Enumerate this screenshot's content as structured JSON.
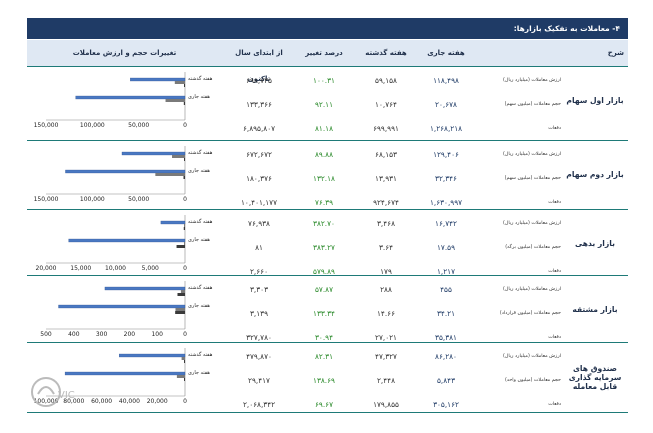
{
  "title": "۴- معاملات به تفکیک بازارها:",
  "headers": {
    "description": "شرح",
    "current_week": "هفته جاری",
    "previous_week": "هفته گذشته",
    "change_percent": "درصد تغییر",
    "ytd": "از ابتدای سال تاکنون",
    "chart_header": "تغییرات حجم و ارزش معاملات"
  },
  "chart_labels": {
    "previous": "هفته گذشته",
    "current": "هفته جاری"
  },
  "markets": [
    {
      "name": "بازار اول سهام",
      "rows": [
        {
          "label": "ارزش معاملات (میلیارد ریال)",
          "current": "۱۱۸,۴۹۸",
          "previous": "۵۹,۱۵۸",
          "change": "۱۰۰.۳۱",
          "ytd": "۶۹۸,۷۳۵"
        },
        {
          "label": "حجم معاملات (میلیون سهم)",
          "current": "۲۰,۶۷۸",
          "previous": "۱۰,۷۶۴",
          "change": "۹۲.۱۱",
          "ytd": "۱۳۳,۳۶۶"
        },
        {
          "label": "دفعات",
          "current": "۱,۲۶۸,۲۱۸",
          "previous": "۶۹۹,۹۹۱",
          "change": "۸۱.۱۸",
          "ytd": "۶,۸۹۵,۸۰۷"
        }
      ]
    },
    {
      "name": "بازار دوم سهام",
      "rows": [
        {
          "label": "ارزش معاملات (میلیارد ریال)",
          "current": "۱۲۹,۴۰۶",
          "previous": "۶۸,۱۵۳",
          "change": "۸۹.۸۸",
          "ytd": "۶۷۲,۶۷۲"
        },
        {
          "label": "حجم معاملات (میلیون سهم)",
          "current": "۳۲,۳۴۶",
          "previous": "۱۳,۹۳۱",
          "change": "۱۳۲.۱۸",
          "ytd": "۱۸۰,۳۷۶"
        },
        {
          "label": "دفعات",
          "current": "۱,۶۳۰,۹۹۷",
          "previous": "۹۲۴,۶۷۴",
          "change": "۷۶.۳۹",
          "ytd": "۱۰,۴۰۱,۱۷۷"
        }
      ]
    },
    {
      "name": "بازار بدهی",
      "rows": [
        {
          "label": "ارزش معاملات (میلیارد ریال)",
          "current": "۱۶,۷۴۲",
          "previous": "۳,۴۶۸",
          "change": "۳۸۲.۷۰",
          "ytd": "۷۶,۹۳۸"
        },
        {
          "label": "حجم معاملات (میلیون برگه)",
          "current": "۱۷.۵۹",
          "previous": "۳.۶۴",
          "change": "۳۸۳.۲۷",
          "ytd": "۸۱"
        },
        {
          "label": "دفعات",
          "current": "۱,۲۱۷",
          "previous": "۱۷۹",
          "change": "۵۷۹.۸۹",
          "ytd": "۲,۶۶۰"
        }
      ]
    },
    {
      "name": "بازار مشتقه",
      "rows": [
        {
          "label": "ارزش معاملات (میلیارد ریال)",
          "current": "۴۵۵",
          "previous": "۲۸۸",
          "change": "۵۷.۸۷",
          "ytd": "۳,۳۰۳"
        },
        {
          "label": "حجم معاملات (میلیون قرارداد)",
          "current": "۳۴.۲۱",
          "previous": "۱۴.۶۶",
          "change": "۱۳۳.۳۴",
          "ytd": "۳,۱۳۹"
        },
        {
          "label": "دفعات",
          "current": "۳۵,۳۸۱",
          "previous": "۲۷,۰۲۱",
          "change": "۳۰.۹۴",
          "ytd": "۳۲۷,۷۸۰"
        }
      ]
    },
    {
      "name": "صندوق های سرمایه گذاری قابل معامله",
      "rows": [
        {
          "label": "ارزش معاملات (میلیارد ریال)",
          "current": "۸۶,۲۸۰",
          "previous": "۴۷,۳۲۷",
          "change": "۸۲.۳۱",
          "ytd": "۴۷۹,۸۷۰"
        },
        {
          "label": "حجم معاملات (میلیون واحد)",
          "current": "۵,۸۴۳",
          "previous": "۲,۴۴۸",
          "change": "۱۳۸.۶۹",
          "ytd": "۲۹,۴۱۷"
        },
        {
          "label": "دفعات",
          "current": "۳۰۵,۱۶۲",
          "previous": "۱۷۹,۸۵۵",
          "change": "۶۹.۶۷",
          "ytd": "۲,۰۶۸,۳۴۲"
        }
      ]
    }
  ],
  "chart_data": [
    {
      "type": "bar",
      "categories": [
        "هفته جاری",
        "هفته گذشته"
      ],
      "series": [
        {
          "values": [
            118,
            59
          ]
        },
        {
          "values": [
            21,
            11
          ]
        },
        {
          "values": [
            1.27,
            0.7
          ]
        }
      ],
      "ticks": [
        "150,000",
        "100,000",
        "50,000",
        "0"
      ],
      "xlim": [
        0,
        150
      ]
    },
    {
      "type": "bar",
      "categories": [
        "هفته جاری",
        "هفته گذشته"
      ],
      "series": [
        {
          "values": [
            129,
            68
          ]
        },
        {
          "values": [
            32,
            14
          ]
        },
        {
          "values": [
            1.63,
            0.92
          ]
        }
      ],
      "ticks": [
        "150,000",
        "100,000",
        "50,000",
        "0"
      ],
      "xlim": [
        0,
        150
      ]
    },
    {
      "type": "bar",
      "categories": [
        "هفته جاری",
        "هفته گذشته"
      ],
      "series": [
        {
          "values": [
            16742,
            3468
          ]
        },
        {
          "values": [
            17.59,
            3.64
          ]
        },
        {
          "values": [
            1217,
            179
          ]
        }
      ],
      "ticks": [
        "20,000",
        "15,000",
        "10,000",
        "5,000",
        "0"
      ],
      "xlim": [
        0,
        20000
      ]
    },
    {
      "type": "bar",
      "categories": [
        "هفته جاری",
        "هفته گذشته"
      ],
      "series": [
        {
          "values": [
            455,
            288
          ]
        },
        {
          "values": [
            34.21,
            14.66
          ]
        },
        {
          "values": [
            35.381,
            27.021
          ]
        }
      ],
      "ticks": [
        "500",
        "400",
        "300",
        "200",
        "100",
        "0"
      ],
      "xlim": [
        0,
        500
      ]
    },
    {
      "type": "bar",
      "categories": [
        "هفته جاری",
        "هفته گذشته"
      ],
      "series": [
        {
          "values": [
            86280,
            47327
          ]
        },
        {
          "values": [
            5843,
            2448
          ]
        },
        {
          "values": [
            305.162,
            179.855
          ]
        }
      ],
      "ticks": [
        "100,000",
        "80,000",
        "60,000",
        "40,000",
        "20,000",
        "0"
      ],
      "xlim": [
        0,
        100000
      ]
    }
  ],
  "colors": {
    "title_bg": "#1f3b66",
    "header_bg": "#dfe8f3",
    "separator": "#1e7a78",
    "bar_blue": "#4a78c2",
    "bar_gray": "#7a7a7a",
    "change_green": "#2a8a2a"
  }
}
